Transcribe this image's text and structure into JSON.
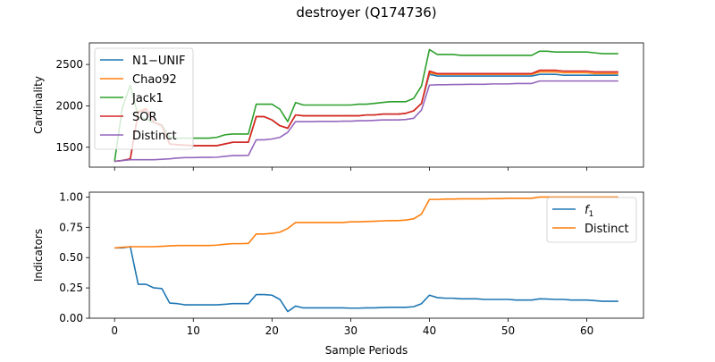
{
  "title": "destroyer (Q174736)",
  "chart_data": [
    {
      "type": "line",
      "ylabel": "Cardinality",
      "xlim": [
        -3.2,
        67.2
      ],
      "ylim": [
        1260,
        2760
      ],
      "yticks": [
        1500,
        2000,
        2500
      ],
      "xticks": [
        0,
        10,
        20,
        30,
        40,
        50,
        60
      ],
      "grid": false,
      "legend_position": "upper-left",
      "series": [
        {
          "name": "N1−UNIF",
          "color": "#1f77b4",
          "x": [
            0,
            1,
            2,
            3,
            4,
            5,
            6,
            7,
            8,
            9,
            10,
            11,
            12,
            13,
            14,
            15,
            16,
            17,
            18,
            19,
            20,
            21,
            22,
            23,
            24,
            25,
            26,
            27,
            28,
            29,
            30,
            31,
            32,
            33,
            34,
            35,
            36,
            37,
            38,
            39,
            40,
            41,
            42,
            43,
            44,
            45,
            46,
            47,
            48,
            49,
            50,
            51,
            52,
            53,
            54,
            55,
            56,
            57,
            58,
            59,
            60,
            61,
            62,
            63,
            64
          ],
          "y": [
            1330,
            1340,
            1360,
            1920,
            1960,
            1800,
            1760,
            1540,
            1530,
            1525,
            1520,
            1520,
            1520,
            1520,
            1540,
            1560,
            1560,
            1560,
            1870,
            1870,
            1830,
            1760,
            1730,
            1890,
            1880,
            1880,
            1880,
            1880,
            1880,
            1880,
            1880,
            1880,
            1890,
            1890,
            1900,
            1900,
            1900,
            1910,
            1940,
            2030,
            2380,
            2360,
            2360,
            2360,
            2360,
            2360,
            2360,
            2360,
            2360,
            2360,
            2360,
            2360,
            2360,
            2360,
            2380,
            2380,
            2380,
            2370,
            2370,
            2370,
            2370,
            2370,
            2370,
            2370,
            2370
          ]
        },
        {
          "name": "Chao92",
          "color": "#ff7f0e",
          "x": [
            0,
            1,
            2,
            3,
            4,
            5,
            6,
            7,
            8,
            9,
            10,
            11,
            12,
            13,
            14,
            15,
            16,
            17,
            18,
            19,
            20,
            21,
            22,
            23,
            24,
            25,
            26,
            27,
            28,
            29,
            30,
            31,
            32,
            33,
            34,
            35,
            36,
            37,
            38,
            39,
            40,
            41,
            42,
            43,
            44,
            45,
            46,
            47,
            48,
            49,
            50,
            51,
            52,
            53,
            54,
            55,
            56,
            57,
            58,
            59,
            60,
            61,
            62,
            63,
            64
          ],
          "y": [
            1330,
            1340,
            1360,
            1930,
            1970,
            1800,
            1760,
            1540,
            1530,
            1525,
            1520,
            1520,
            1520,
            1520,
            1540,
            1560,
            1560,
            1560,
            1870,
            1870,
            1830,
            1760,
            1730,
            1890,
            1880,
            1880,
            1880,
            1880,
            1880,
            1880,
            1880,
            1880,
            1890,
            1890,
            1900,
            1900,
            1900,
            1910,
            1940,
            2030,
            2400,
            2380,
            2380,
            2380,
            2380,
            2380,
            2380,
            2380,
            2380,
            2380,
            2380,
            2380,
            2380,
            2380,
            2410,
            2410,
            2410,
            2400,
            2400,
            2400,
            2400,
            2390,
            2390,
            2390,
            2390
          ]
        },
        {
          "name": "Jack1",
          "color": "#2ca02c",
          "x": [
            0,
            1,
            2,
            3,
            4,
            5,
            6,
            7,
            8,
            9,
            10,
            11,
            12,
            13,
            14,
            15,
            16,
            17,
            18,
            19,
            20,
            21,
            22,
            23,
            24,
            25,
            26,
            27,
            28,
            29,
            30,
            31,
            32,
            33,
            34,
            35,
            36,
            37,
            38,
            39,
            40,
            41,
            42,
            43,
            44,
            45,
            46,
            47,
            48,
            49,
            50,
            51,
            52,
            53,
            54,
            55,
            56,
            57,
            58,
            59,
            60,
            61,
            62,
            63,
            64
          ],
          "y": [
            1330,
            1980,
            2250,
            1870,
            1840,
            1800,
            1770,
            1620,
            1610,
            1610,
            1610,
            1610,
            1610,
            1620,
            1650,
            1660,
            1660,
            1660,
            2020,
            2020,
            2020,
            1960,
            1810,
            2040,
            2010,
            2010,
            2010,
            2010,
            2010,
            2010,
            2010,
            2020,
            2020,
            2030,
            2040,
            2050,
            2050,
            2050,
            2090,
            2240,
            2680,
            2620,
            2620,
            2620,
            2610,
            2610,
            2610,
            2610,
            2610,
            2610,
            2610,
            2610,
            2610,
            2610,
            2660,
            2660,
            2650,
            2650,
            2650,
            2650,
            2650,
            2640,
            2630,
            2630,
            2630
          ]
        },
        {
          "name": "SOR",
          "color": "#d62728",
          "x": [
            0,
            1,
            2,
            3,
            4,
            5,
            6,
            7,
            8,
            9,
            10,
            11,
            12,
            13,
            14,
            15,
            16,
            17,
            18,
            19,
            20,
            21,
            22,
            23,
            24,
            25,
            26,
            27,
            28,
            29,
            30,
            31,
            32,
            33,
            34,
            35,
            36,
            37,
            38,
            39,
            40,
            41,
            42,
            43,
            44,
            45,
            46,
            47,
            48,
            49,
            50,
            51,
            52,
            53,
            54,
            55,
            56,
            57,
            58,
            59,
            60,
            61,
            62,
            63,
            64
          ],
          "y": [
            1330,
            1340,
            1360,
            1920,
            1960,
            1800,
            1760,
            1540,
            1530,
            1525,
            1520,
            1520,
            1520,
            1520,
            1540,
            1560,
            1560,
            1560,
            1870,
            1870,
            1830,
            1760,
            1730,
            1890,
            1880,
            1880,
            1880,
            1880,
            1880,
            1880,
            1880,
            1880,
            1890,
            1890,
            1900,
            1900,
            1900,
            1910,
            1940,
            2030,
            2420,
            2390,
            2390,
            2390,
            2390,
            2390,
            2390,
            2390,
            2390,
            2390,
            2390,
            2390,
            2390,
            2390,
            2430,
            2430,
            2430,
            2420,
            2420,
            2420,
            2420,
            2410,
            2410,
            2410,
            2410
          ]
        },
        {
          "name": "Distinct",
          "color": "#9467bd",
          "x": [
            0,
            1,
            2,
            3,
            4,
            5,
            6,
            7,
            8,
            9,
            10,
            11,
            12,
            13,
            14,
            15,
            16,
            17,
            18,
            19,
            20,
            21,
            22,
            23,
            24,
            25,
            26,
            27,
            28,
            29,
            30,
            31,
            32,
            33,
            34,
            35,
            36,
            37,
            38,
            39,
            40,
            41,
            42,
            43,
            44,
            45,
            46,
            47,
            48,
            49,
            50,
            51,
            52,
            53,
            54,
            55,
            56,
            57,
            58,
            59,
            60,
            61,
            62,
            63,
            64
          ],
          "y": [
            1330,
            1340,
            1350,
            1350,
            1350,
            1350,
            1355,
            1360,
            1370,
            1375,
            1375,
            1378,
            1378,
            1380,
            1390,
            1400,
            1400,
            1402,
            1590,
            1590,
            1600,
            1620,
            1680,
            1810,
            1810,
            1810,
            1812,
            1812,
            1812,
            1815,
            1815,
            1820,
            1820,
            1825,
            1830,
            1830,
            1830,
            1835,
            1850,
            1950,
            2250,
            2255,
            2255,
            2258,
            2258,
            2260,
            2260,
            2260,
            2265,
            2265,
            2265,
            2270,
            2270,
            2270,
            2300,
            2300,
            2300,
            2300,
            2300,
            2300,
            2300,
            2300,
            2300,
            2300,
            2300
          ]
        }
      ]
    },
    {
      "type": "line",
      "xlabel": "Sample Periods",
      "ylabel": "Indicators",
      "xlim": [
        -3.2,
        67.2
      ],
      "ylim": [
        0,
        1.04
      ],
      "yticks": [
        0.0,
        0.25,
        0.5,
        0.75,
        1.0
      ],
      "ytick_labels": [
        "0.00",
        "0.25",
        "0.50",
        "0.75",
        "1.00"
      ],
      "xticks": [
        0,
        10,
        20,
        30,
        40,
        50,
        60
      ],
      "grid": false,
      "legend_position": "upper-right",
      "series": [
        {
          "name": "f1",
          "color": "#1f77b4",
          "x": [
            0,
            1,
            2,
            3,
            4,
            5,
            6,
            7,
            8,
            9,
            10,
            11,
            12,
            13,
            14,
            15,
            16,
            17,
            18,
            19,
            20,
            21,
            22,
            23,
            24,
            25,
            26,
            27,
            28,
            29,
            30,
            31,
            32,
            33,
            34,
            35,
            36,
            37,
            38,
            39,
            40,
            41,
            42,
            43,
            44,
            45,
            46,
            47,
            48,
            49,
            50,
            51,
            52,
            53,
            54,
            55,
            56,
            57,
            58,
            59,
            60,
            61,
            62,
            63,
            64
          ],
          "y": [
            0.58,
            0.58,
            0.59,
            0.28,
            0.28,
            0.25,
            0.245,
            0.125,
            0.12,
            0.11,
            0.11,
            0.11,
            0.11,
            0.11,
            0.115,
            0.12,
            0.12,
            0.12,
            0.195,
            0.195,
            0.19,
            0.155,
            0.055,
            0.1,
            0.085,
            0.085,
            0.085,
            0.085,
            0.085,
            0.085,
            0.083,
            0.083,
            0.085,
            0.085,
            0.088,
            0.09,
            0.09,
            0.09,
            0.095,
            0.12,
            0.19,
            0.17,
            0.165,
            0.165,
            0.16,
            0.16,
            0.16,
            0.155,
            0.155,
            0.155,
            0.155,
            0.15,
            0.15,
            0.15,
            0.16,
            0.158,
            0.155,
            0.155,
            0.15,
            0.15,
            0.15,
            0.145,
            0.14,
            0.14,
            0.14
          ]
        },
        {
          "name": "Distinct",
          "color": "#ff7f0e",
          "x": [
            0,
            1,
            2,
            3,
            4,
            5,
            6,
            7,
            8,
            9,
            10,
            11,
            12,
            13,
            14,
            15,
            16,
            17,
            18,
            19,
            20,
            21,
            22,
            23,
            24,
            25,
            26,
            27,
            28,
            29,
            30,
            31,
            32,
            33,
            34,
            35,
            36,
            37,
            38,
            39,
            40,
            41,
            42,
            43,
            44,
            45,
            46,
            47,
            48,
            49,
            50,
            51,
            52,
            53,
            54,
            55,
            56,
            57,
            58,
            59,
            60,
            61,
            62,
            63,
            64
          ],
          "y": [
            0.58,
            0.585,
            0.59,
            0.59,
            0.59,
            0.59,
            0.593,
            0.597,
            0.6,
            0.6,
            0.6,
            0.6,
            0.6,
            0.603,
            0.61,
            0.615,
            0.615,
            0.617,
            0.695,
            0.695,
            0.7,
            0.71,
            0.74,
            0.79,
            0.79,
            0.79,
            0.79,
            0.79,
            0.79,
            0.79,
            0.795,
            0.795,
            0.798,
            0.8,
            0.803,
            0.805,
            0.805,
            0.81,
            0.82,
            0.86,
            0.98,
            0.98,
            0.983,
            0.983,
            0.985,
            0.985,
            0.985,
            0.985,
            0.987,
            0.987,
            0.99,
            0.99,
            0.99,
            0.99,
            1.0,
            1.0,
            1.0,
            1.0,
            1.0,
            1.0,
            1.0,
            1.0,
            1.0,
            1.0,
            1.0
          ]
        }
      ]
    }
  ]
}
